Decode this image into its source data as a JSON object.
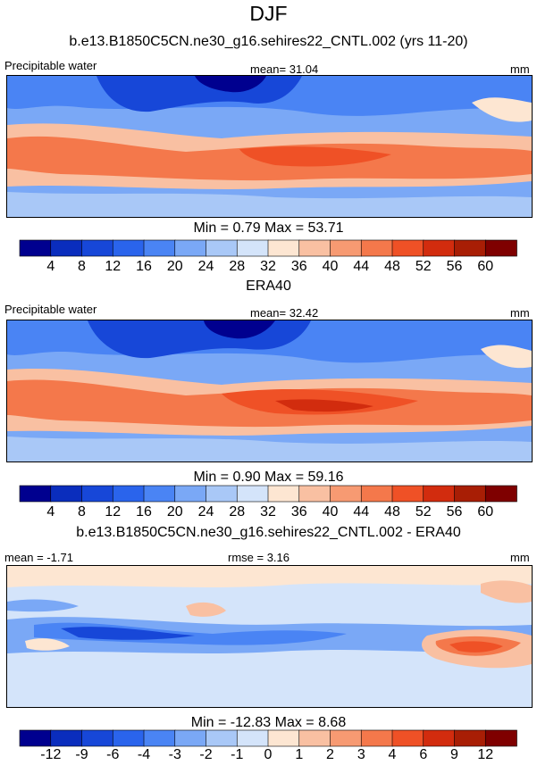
{
  "figure": {
    "title": "DJF",
    "subtitle": "b.e13.B1850C5CN.ne30_g16.sehires22_CNTL.002 (yrs 11-20)"
  },
  "chart_data": [
    {
      "type": "heatmap",
      "title": "b.e13.B1850C5CN.ne30_g16.sehires22_CNTL.002 (yrs 11-20)",
      "variable": "Precipitable water",
      "units": "mm",
      "mean_label": "mean=  31.04",
      "mean": 31.04,
      "min": 0.79,
      "max": 53.71,
      "stats_label": "Min =   0.79 Max =  53.71",
      "levels": [
        4,
        8,
        12,
        16,
        20,
        24,
        28,
        32,
        36,
        40,
        44,
        48,
        52,
        56,
        60
      ],
      "level_labels": [
        "4",
        "8",
        "12",
        "16",
        "20",
        "24",
        "28",
        "32",
        "36",
        "40",
        "44",
        "48",
        "52",
        "56",
        "60"
      ],
      "colors": [
        "#00008f",
        "#0a2dbd",
        "#1747d8",
        "#2a64ec",
        "#4a84f4",
        "#7aa8f6",
        "#a9c8f7",
        "#d4e4fa",
        "#fde6d2",
        "#f9c0a2",
        "#f79a72",
        "#f4784b",
        "#ef5126",
        "#d22c0e",
        "#a81e05",
        "#7f0000"
      ]
    },
    {
      "type": "heatmap",
      "title": "ERA40",
      "variable": "Precipitable water",
      "units": "mm",
      "mean_label": "mean=  32.42",
      "mean": 32.42,
      "min": 0.9,
      "max": 59.16,
      "stats_label": "Min =   0.90 Max =  59.16",
      "levels": [
        4,
        8,
        12,
        16,
        20,
        24,
        28,
        32,
        36,
        40,
        44,
        48,
        52,
        56,
        60
      ],
      "level_labels": [
        "4",
        "8",
        "12",
        "16",
        "20",
        "24",
        "28",
        "32",
        "36",
        "40",
        "44",
        "48",
        "52",
        "56",
        "60"
      ],
      "colors": [
        "#00008f",
        "#0a2dbd",
        "#1747d8",
        "#2a64ec",
        "#4a84f4",
        "#7aa8f6",
        "#a9c8f7",
        "#d4e4fa",
        "#fde6d2",
        "#f9c0a2",
        "#f79a72",
        "#f4784b",
        "#ef5126",
        "#d22c0e",
        "#a81e05",
        "#7f0000"
      ]
    },
    {
      "type": "heatmap",
      "title": "b.e13.B1850C5CN.ne30_g16.sehires22_CNTL.002 - ERA40",
      "units": "mm",
      "mean_label": "mean =  -1.71",
      "mean": -1.71,
      "rmse_label": "rmse =   3.16",
      "rmse": 3.16,
      "min": -12.83,
      "max": 8.68,
      "stats_label": "Min = -12.83 Max =   8.68",
      "levels": [
        -12,
        -9,
        -6,
        -4,
        -3,
        -2,
        -1,
        0,
        1,
        2,
        3,
        4,
        6,
        9,
        12
      ],
      "level_labels": [
        "-12",
        "-9",
        "-6",
        "-4",
        "-3",
        "-2",
        "-1",
        "0",
        "1",
        "2",
        "3",
        "4",
        "6",
        "9",
        "12"
      ],
      "colors": [
        "#00008f",
        "#0a2dbd",
        "#1747d8",
        "#2a64ec",
        "#4a84f4",
        "#7aa8f6",
        "#a9c8f7",
        "#d4e4fa",
        "#fde6d2",
        "#f9c0a2",
        "#f79a72",
        "#f4784b",
        "#ef5126",
        "#d22c0e",
        "#a81e05",
        "#7f0000"
      ]
    }
  ]
}
